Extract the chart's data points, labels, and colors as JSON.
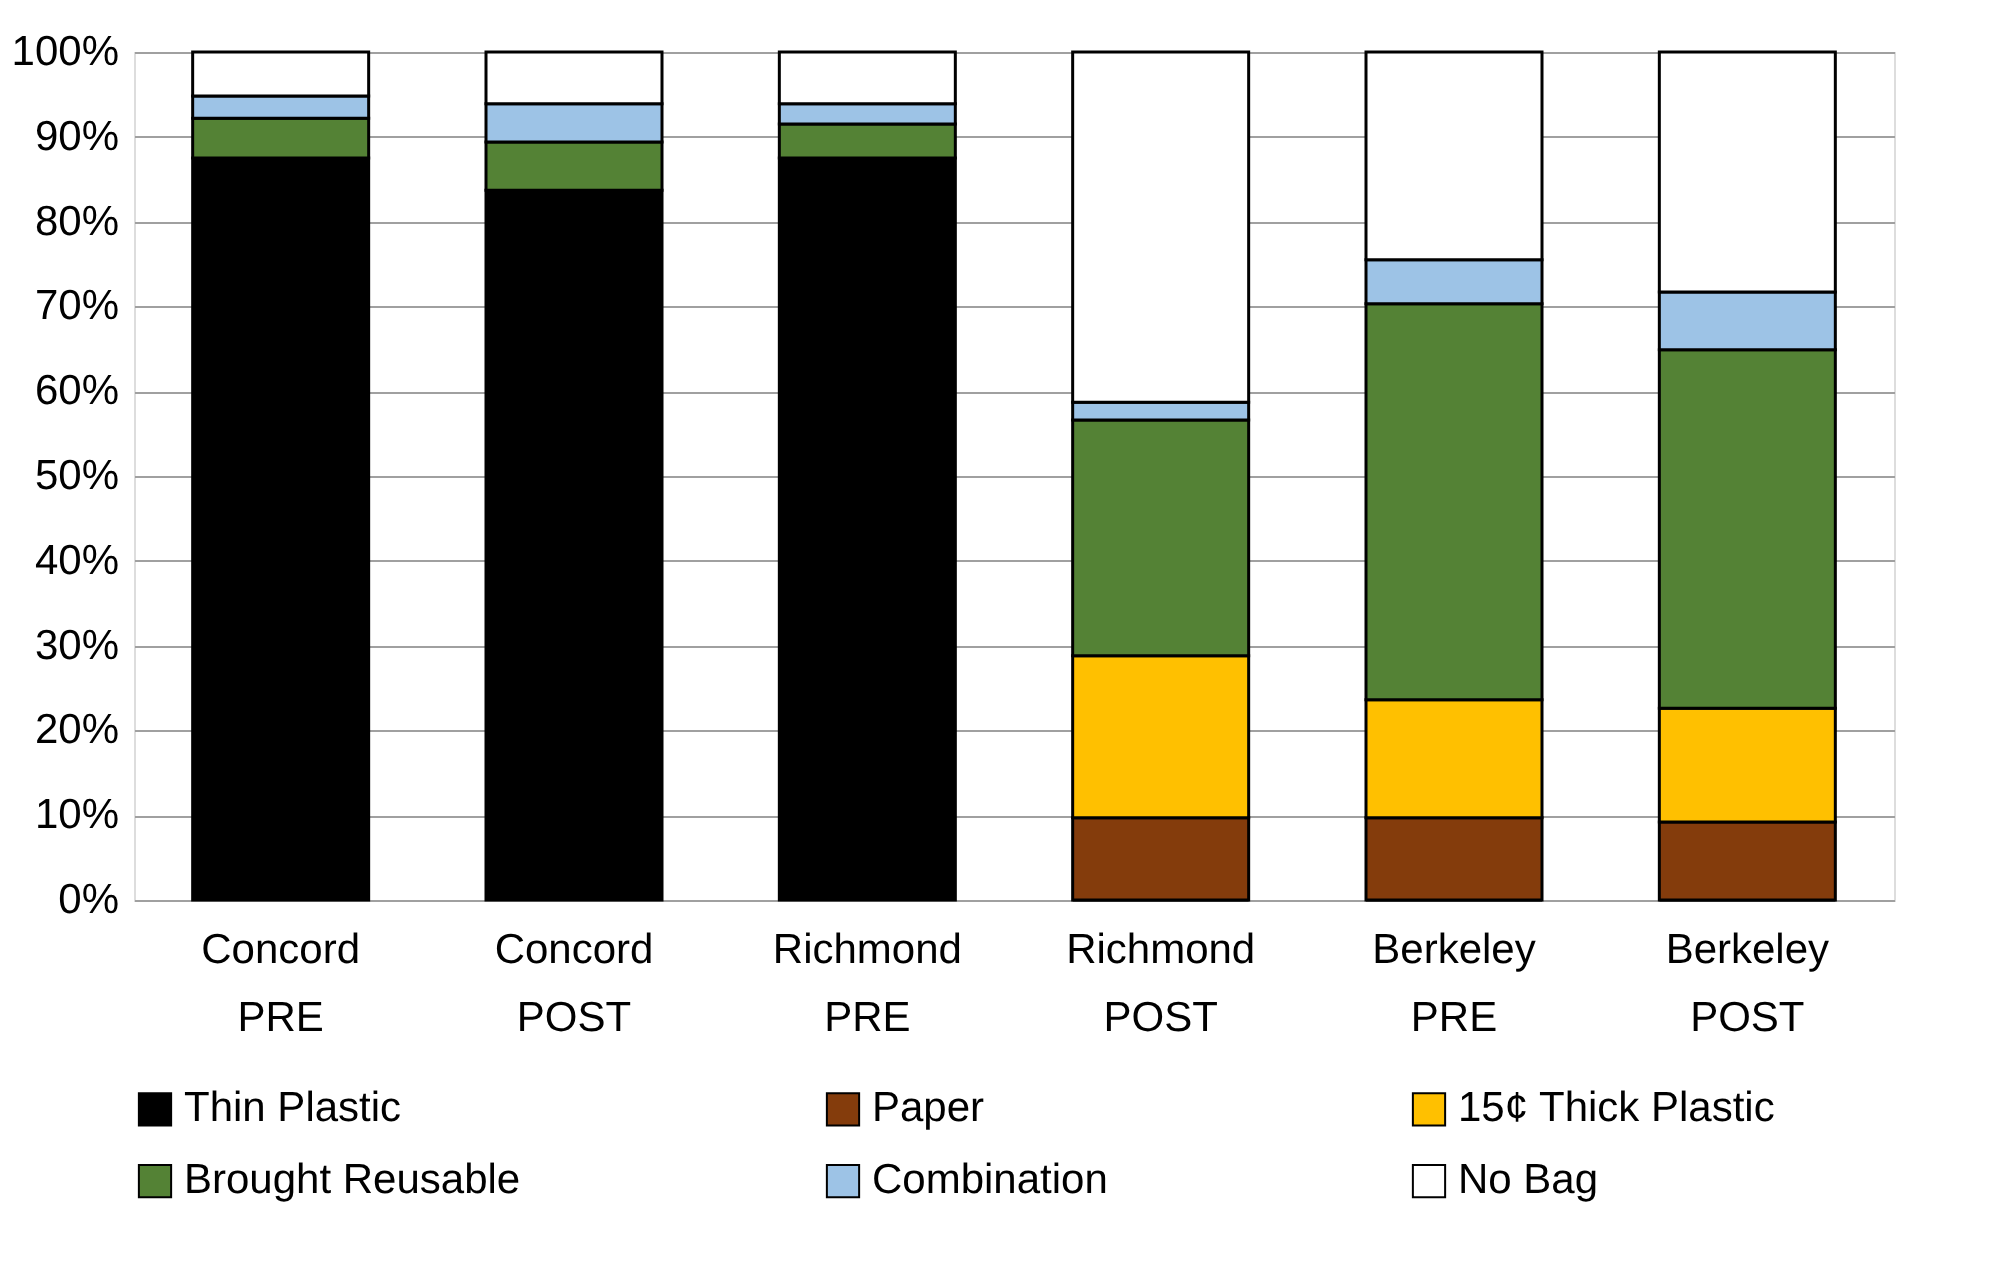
{
  "chart_data": {
    "type": "bar",
    "stacked": true,
    "categories": [
      "Concord\nPRE",
      "Concord\nPOST",
      "Richmond\nPRE",
      "Richmond\nPOST",
      "Berkeley\nPRE",
      "Berkeley\nPOST"
    ],
    "series": [
      {
        "name": "Thin Plastic",
        "color": "#000000",
        "values": [
          87.5,
          83.7,
          87.5,
          0,
          0,
          0
        ]
      },
      {
        "name": "Paper",
        "color": "#843c0c",
        "values": [
          0,
          0,
          0,
          9.7,
          9.7,
          9.2
        ]
      },
      {
        "name": "15¢ Thick Plastic",
        "color": "#ffc000",
        "values": [
          0,
          0,
          0,
          19.1,
          13.9,
          13.4
        ]
      },
      {
        "name": "Brought Reusable",
        "color": "#548235",
        "values": [
          4.7,
          5.7,
          4.0,
          27.8,
          46.7,
          42.3
        ]
      },
      {
        "name": "Combination",
        "color": "#9dc3e6",
        "values": [
          2.6,
          4.5,
          2.4,
          2.1,
          5.2,
          6.8
        ]
      },
      {
        "name": "No Bag",
        "color": "#ffffff",
        "values": [
          5.2,
          6.1,
          6.1,
          41.3,
          24.5,
          28.3
        ]
      }
    ],
    "ylim": [
      0,
      100
    ],
    "yticks": [
      {
        "value": 0,
        "label": "0%"
      },
      {
        "value": 10,
        "label": "10%"
      },
      {
        "value": 20,
        "label": "20%"
      },
      {
        "value": 30,
        "label": "30%"
      },
      {
        "value": 40,
        "label": "40%"
      },
      {
        "value": 50,
        "label": "50%"
      },
      {
        "value": 60,
        "label": "60%"
      },
      {
        "value": 70,
        "label": "70%"
      },
      {
        "value": 80,
        "label": "80%"
      },
      {
        "value": 90,
        "label": "90%"
      },
      {
        "value": 100,
        "label": "100%"
      }
    ],
    "grid": "y",
    "legend": "bottom"
  }
}
